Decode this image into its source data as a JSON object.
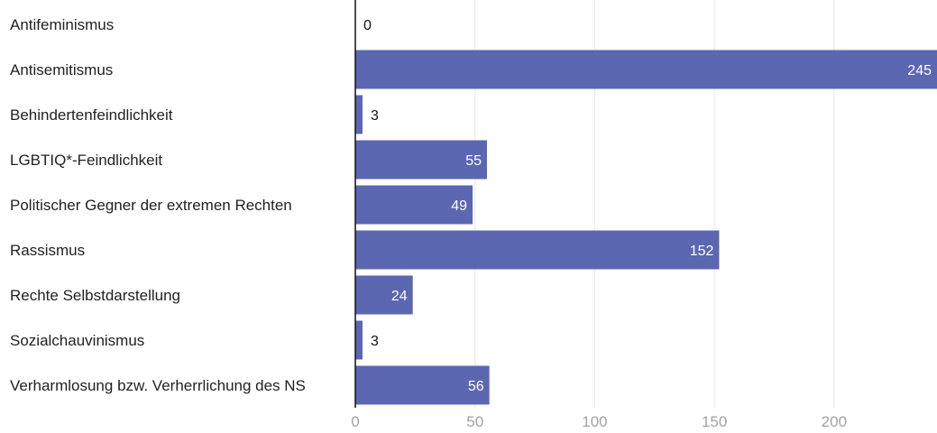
{
  "chart_data": {
    "type": "bar",
    "orientation": "horizontal",
    "title": "",
    "xlabel": "",
    "ylabel": "",
    "categories": [
      "Antifeminismus",
      "Antisemitismus",
      "Behindertenfeindlichkeit",
      "LGBTIQ*-Feindlichkeit",
      "Politischer Gegner der extremen Rechten",
      "Rassismus",
      "Rechte Selbstdarstellung",
      "Sozialchauvinismus",
      "Verharmlosung bzw. Verherrlichung des NS"
    ],
    "values": [
      0,
      245,
      3,
      55,
      49,
      152,
      24,
      3,
      56
    ],
    "value_labels": [
      "0",
      "245",
      "3",
      "55",
      "49",
      "152",
      "24",
      "3",
      "56"
    ],
    "xlim": [
      0,
      243
    ],
    "xticks": [
      0,
      50,
      100,
      150,
      200
    ],
    "xtick_labels": [
      "0",
      "50",
      "100",
      "150",
      "200"
    ],
    "grid": true,
    "legend": "none",
    "colors": {
      "bar": "#5b67b1",
      "label_inside": "#ffffff",
      "label_outside": "#111111",
      "grid": "#e6e6e6",
      "axis": "#111111",
      "tick_text": "#a3a3a3",
      "category_text": "#222222"
    }
  }
}
